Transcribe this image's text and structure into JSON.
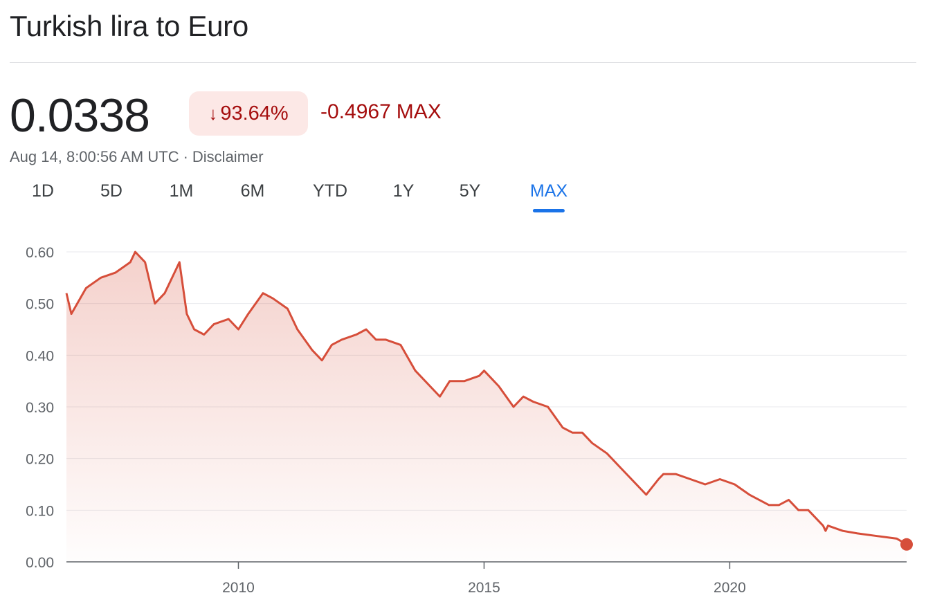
{
  "header": {
    "title": "Turkish lira to Euro"
  },
  "quote": {
    "price": "0.0338",
    "change_arrow": "↓",
    "change_pct": "93.64%",
    "change_abs": "-0.4967",
    "change_period": "MAX",
    "timestamp": "Aug 14, 8:00:56 AM UTC",
    "separator": "·",
    "disclaimer": "Disclaimer"
  },
  "ranges": {
    "items": [
      "1D",
      "5D",
      "1M",
      "6M",
      "YTD",
      "1Y",
      "5Y",
      "MAX"
    ],
    "selected": "MAX"
  },
  "colors": {
    "line": "#d64e3a",
    "negative_text": "#a50e0e",
    "badge_bg": "#fce8e6",
    "accent": "#1a73e8",
    "grid": "#e8eaed"
  },
  "chart_data": {
    "type": "area",
    "x_ticks": [
      "2010",
      "2015",
      "2020"
    ],
    "ylim": [
      0,
      0.6
    ],
    "y_ticks": [
      "0.00",
      "0.10",
      "0.20",
      "0.30",
      "0.40",
      "0.50",
      "0.60"
    ],
    "grid": true,
    "series": [
      {
        "x": [
          2006.5,
          2006.6,
          2006.9,
          2007.2,
          2007.5,
          2007.8,
          2007.9,
          2008.1,
          2008.3,
          2008.5,
          2008.8,
          2008.95,
          2009.1,
          2009.3,
          2009.5,
          2009.8,
          2010.0,
          2010.2,
          2010.5,
          2010.7,
          2011.0,
          2011.2,
          2011.5,
          2011.7,
          2011.9,
          2012.1,
          2012.4,
          2012.6,
          2012.8,
          2013.0,
          2013.3,
          2013.6,
          2013.9,
          2014.1,
          2014.3,
          2014.6,
          2014.9,
          2015.0,
          2015.3,
          2015.6,
          2015.8,
          2016.0,
          2016.3,
          2016.6,
          2016.8,
          2017.0,
          2017.2,
          2017.5,
          2017.8,
          2018.0,
          2018.3,
          2018.55,
          2018.65,
          2018.9,
          2019.2,
          2019.5,
          2019.8,
          2020.1,
          2020.4,
          2020.8,
          2021.0,
          2021.2,
          2021.4,
          2021.6,
          2021.9,
          2021.95,
          2022.0,
          2022.3,
          2022.6,
          2023.0,
          2023.4,
          2023.6
        ],
        "values": [
          0.52,
          0.48,
          0.53,
          0.55,
          0.56,
          0.58,
          0.6,
          0.58,
          0.5,
          0.52,
          0.58,
          0.48,
          0.45,
          0.44,
          0.46,
          0.47,
          0.45,
          0.48,
          0.52,
          0.51,
          0.49,
          0.45,
          0.41,
          0.39,
          0.42,
          0.43,
          0.44,
          0.45,
          0.43,
          0.43,
          0.42,
          0.37,
          0.34,
          0.32,
          0.35,
          0.35,
          0.36,
          0.37,
          0.34,
          0.3,
          0.32,
          0.31,
          0.3,
          0.26,
          0.25,
          0.25,
          0.23,
          0.21,
          0.18,
          0.16,
          0.13,
          0.16,
          0.17,
          0.17,
          0.16,
          0.15,
          0.16,
          0.15,
          0.13,
          0.11,
          0.11,
          0.12,
          0.1,
          0.1,
          0.07,
          0.06,
          0.07,
          0.06,
          0.055,
          0.05,
          0.045,
          0.0338
        ]
      }
    ]
  }
}
